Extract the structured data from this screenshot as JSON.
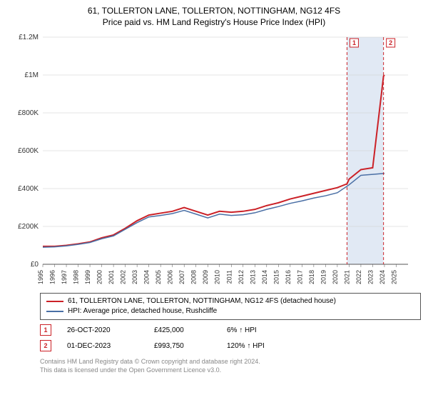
{
  "title_line1": "61, TOLLERTON LANE, TOLLERTON, NOTTINGHAM, NG12 4FS",
  "title_line2": "Price paid vs. HM Land Registry's House Price Index (HPI)",
  "chart": {
    "type": "line",
    "background_color": "#ffffff",
    "grid_color": "#cccccc",
    "axis_color": "#555555",
    "highlight_band_color": "#e1e9f4",
    "highlight_band_xrange": [
      2020.82,
      2023.92
    ],
    "xlim": [
      1995,
      2026
    ],
    "ylim": [
      0,
      1200000
    ],
    "y_ticks": [
      0,
      200000,
      400000,
      600000,
      800000,
      1000000,
      1200000
    ],
    "y_tick_labels": [
      "£0",
      "£200K",
      "£400K",
      "£600K",
      "£800K",
      "£1M",
      "£1.2M"
    ],
    "x_ticks": [
      1995,
      1996,
      1997,
      1998,
      1999,
      2000,
      2001,
      2002,
      2003,
      2004,
      2005,
      2006,
      2007,
      2008,
      2009,
      2010,
      2011,
      2012,
      2013,
      2014,
      2015,
      2016,
      2017,
      2018,
      2019,
      2020,
      2021,
      2022,
      2023,
      2024,
      2025
    ],
    "x_tick_labels": [
      "1995",
      "1996",
      "1997",
      "1998",
      "1999",
      "2000",
      "2001",
      "2002",
      "2003",
      "2004",
      "2005",
      "2006",
      "2007",
      "2008",
      "2009",
      "2010",
      "2011",
      "2012",
      "2013",
      "2014",
      "2015",
      "2016",
      "2017",
      "2018",
      "2019",
      "2020",
      "2021",
      "2022",
      "2023",
      "2024",
      "2025"
    ],
    "axis_label_fontsize": 10,
    "marker_lines": [
      {
        "x": 2020.82,
        "color": "#cb2127",
        "dash": "4,3",
        "label": "1"
      },
      {
        "x": 2023.92,
        "color": "#cb2127",
        "dash": "4,3",
        "label": "2"
      }
    ],
    "series": [
      {
        "name": "property",
        "color": "#cb2127",
        "width": 2,
        "points": [
          [
            1995,
            95000
          ],
          [
            1996,
            95000
          ],
          [
            1997,
            100000
          ],
          [
            1998,
            108000
          ],
          [
            1999,
            118000
          ],
          [
            2000,
            140000
          ],
          [
            2001,
            155000
          ],
          [
            2002,
            190000
          ],
          [
            2003,
            230000
          ],
          [
            2004,
            260000
          ],
          [
            2005,
            270000
          ],
          [
            2006,
            280000
          ],
          [
            2007,
            300000
          ],
          [
            2008,
            280000
          ],
          [
            2009,
            260000
          ],
          [
            2010,
            280000
          ],
          [
            2011,
            275000
          ],
          [
            2012,
            280000
          ],
          [
            2013,
            290000
          ],
          [
            2014,
            310000
          ],
          [
            2015,
            325000
          ],
          [
            2016,
            345000
          ],
          [
            2017,
            360000
          ],
          [
            2018,
            375000
          ],
          [
            2019,
            390000
          ],
          [
            2020,
            405000
          ],
          [
            2020.82,
            425000
          ],
          [
            2021,
            450000
          ],
          [
            2022,
            500000
          ],
          [
            2023,
            510000
          ],
          [
            2023.92,
            993750
          ],
          [
            2024,
            1000000
          ]
        ]
      },
      {
        "name": "hpi",
        "color": "#4a6fa5",
        "width": 1.5,
        "points": [
          [
            1995,
            90000
          ],
          [
            1996,
            92000
          ],
          [
            1997,
            97000
          ],
          [
            1998,
            105000
          ],
          [
            1999,
            115000
          ],
          [
            2000,
            135000
          ],
          [
            2001,
            150000
          ],
          [
            2002,
            185000
          ],
          [
            2003,
            220000
          ],
          [
            2004,
            250000
          ],
          [
            2005,
            258000
          ],
          [
            2006,
            268000
          ],
          [
            2007,
            285000
          ],
          [
            2008,
            265000
          ],
          [
            2009,
            245000
          ],
          [
            2010,
            265000
          ],
          [
            2011,
            258000
          ],
          [
            2012,
            262000
          ],
          [
            2013,
            272000
          ],
          [
            2014,
            290000
          ],
          [
            2015,
            305000
          ],
          [
            2016,
            322000
          ],
          [
            2017,
            335000
          ],
          [
            2018,
            350000
          ],
          [
            2019,
            362000
          ],
          [
            2020,
            378000
          ],
          [
            2021,
            420000
          ],
          [
            2022,
            470000
          ],
          [
            2023,
            475000
          ],
          [
            2024,
            480000
          ]
        ]
      }
    ]
  },
  "legend": {
    "items": [
      {
        "color": "#cb2127",
        "label": "61, TOLLERTON LANE, TOLLERTON, NOTTINGHAM, NG12 4FS (detached house)"
      },
      {
        "color": "#4a6fa5",
        "label": "HPI: Average price, detached house, Rushcliffe"
      }
    ]
  },
  "sales": [
    {
      "marker": "1",
      "marker_color": "#cb2127",
      "date": "26-OCT-2020",
      "price": "£425,000",
      "delta": "6%",
      "delta_dir": "↑",
      "delta_label": "HPI"
    },
    {
      "marker": "2",
      "marker_color": "#cb2127",
      "date": "01-DEC-2023",
      "price": "£993,750",
      "delta": "120%",
      "delta_dir": "↑",
      "delta_label": "HPI"
    }
  ],
  "footer_line1": "Contains HM Land Registry data © Crown copyright and database right 2024.",
  "footer_line2": "This data is licensed under the Open Government Licence v3.0."
}
